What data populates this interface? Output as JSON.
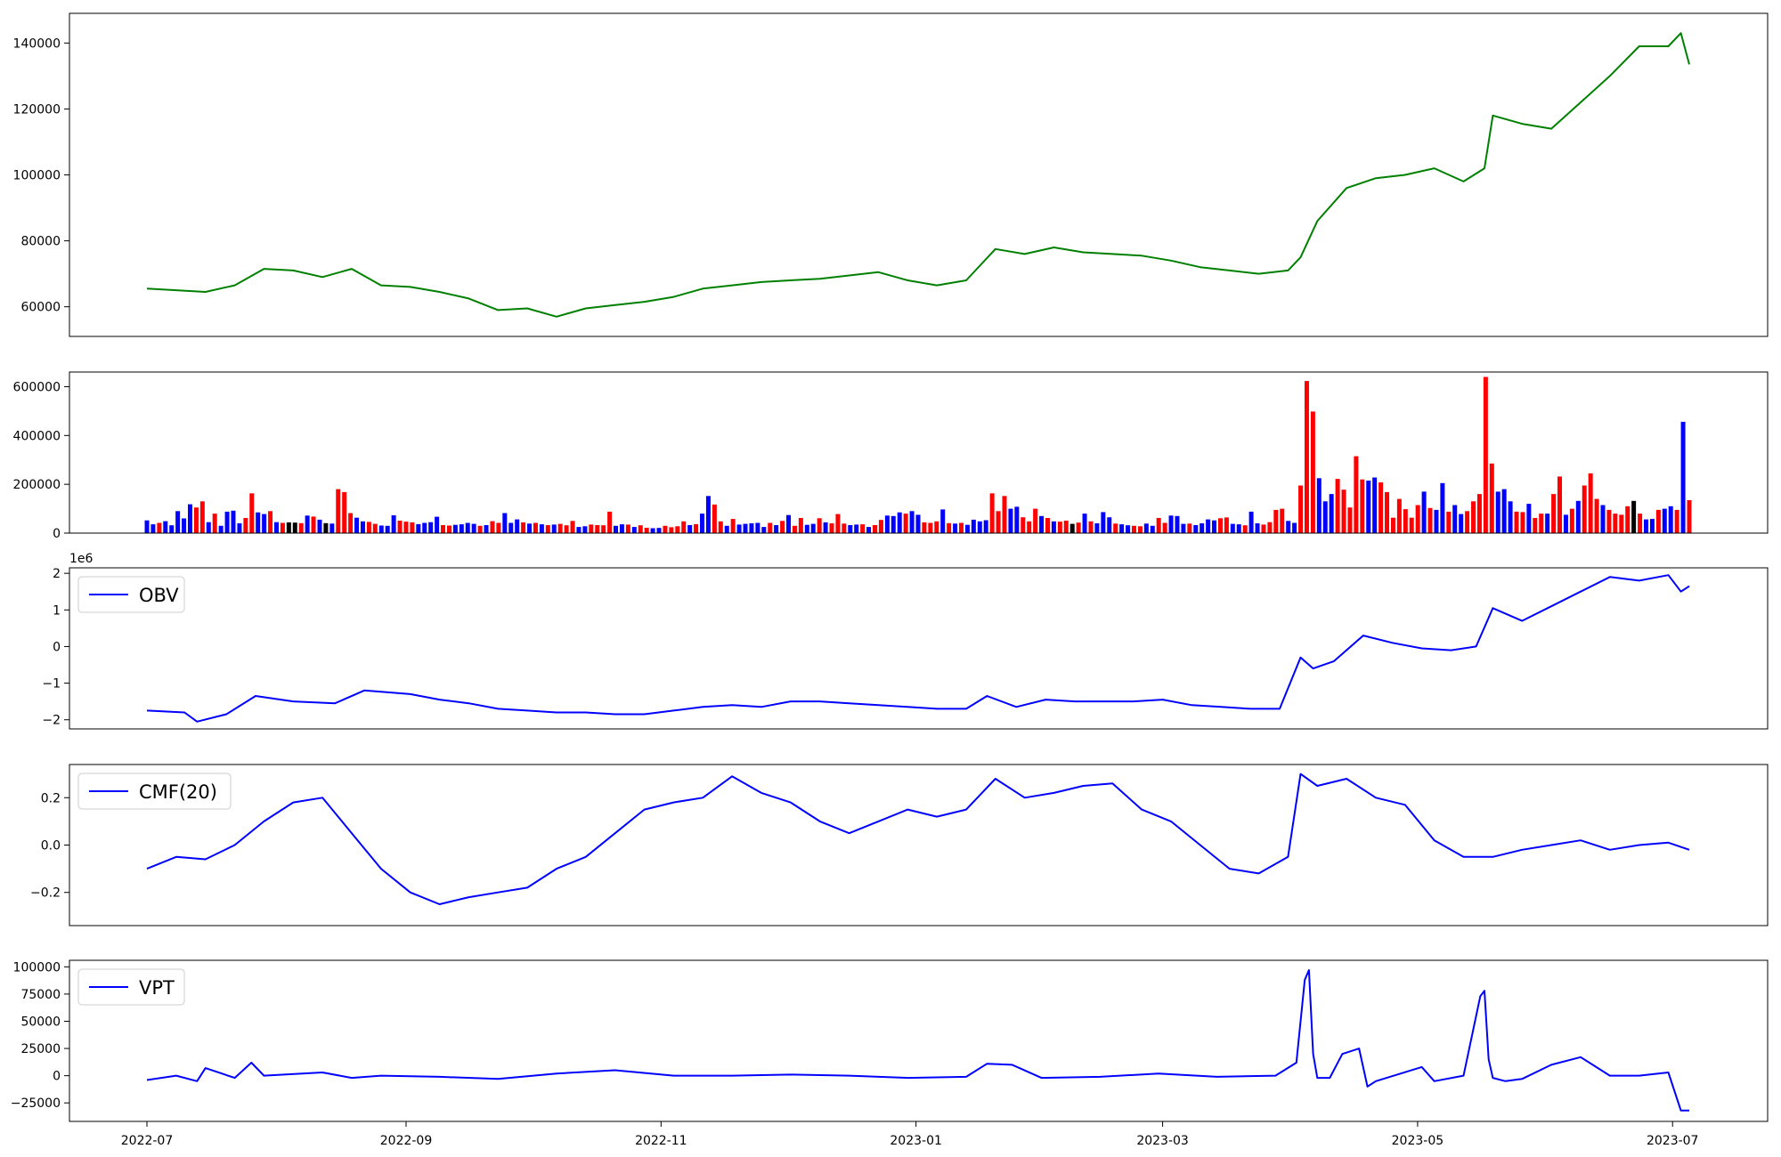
{
  "chart_data": [
    {
      "type": "line",
      "id": "price",
      "color": "#008000",
      "ylim": [
        51000,
        149000
      ],
      "yticks": [
        60000,
        80000,
        100000,
        120000,
        140000
      ],
      "series": [
        {
          "x": [
            "2022-07-01",
            "2022-07-08",
            "2022-07-15",
            "2022-07-22",
            "2022-07-29",
            "2022-08-05",
            "2022-08-12",
            "2022-08-19",
            "2022-08-26",
            "2022-09-02",
            "2022-09-09",
            "2022-09-16",
            "2022-09-23",
            "2022-09-30",
            "2022-10-07",
            "2022-10-14",
            "2022-10-21",
            "2022-10-28",
            "2022-11-04",
            "2022-11-11",
            "2022-11-18",
            "2022-11-25",
            "2022-12-02",
            "2022-12-09",
            "2022-12-16",
            "2022-12-23",
            "2022-12-30",
            "2023-01-06",
            "2023-01-13",
            "2023-01-20",
            "2023-01-27",
            "2023-02-03",
            "2023-02-10",
            "2023-02-17",
            "2023-02-24",
            "2023-03-03",
            "2023-03-10",
            "2023-03-17",
            "2023-03-24",
            "2023-03-31",
            "2023-04-03",
            "2023-04-07",
            "2023-04-14",
            "2023-04-21",
            "2023-04-28",
            "2023-05-05",
            "2023-05-12",
            "2023-05-17",
            "2023-05-19",
            "2023-05-26",
            "2023-06-02",
            "2023-06-09",
            "2023-06-16",
            "2023-06-23",
            "2023-06-30",
            "2023-07-03",
            "2023-07-05"
          ],
          "values": [
            65500,
            65000,
            64500,
            66500,
            71500,
            71000,
            69000,
            71500,
            66500,
            66000,
            64500,
            62500,
            59000,
            59500,
            57000,
            59500,
            60500,
            61500,
            63000,
            65500,
            66500,
            67500,
            68000,
            68500,
            69500,
            70500,
            68000,
            66500,
            68000,
            77500,
            76000,
            78000,
            76500,
            76000,
            75500,
            74000,
            72000,
            71000,
            70000,
            71000,
            75000,
            86000,
            96000,
            99000,
            100000,
            102000,
            98000,
            102000,
            118000,
            115500,
            114000,
            122000,
            130000,
            139000,
            139000,
            143000,
            133500
          ]
        }
      ]
    },
    {
      "type": "bar",
      "id": "volume",
      "ylim": [
        0,
        660000
      ],
      "yticks": [
        0,
        200000,
        400000,
        600000
      ],
      "colors": {
        "up": "#ff0000",
        "down": "#0000ff",
        "flat": "#000000"
      },
      "x_start": "2022-07-01",
      "x_end": "2023-07-05",
      "values": [
        52000,
        36000,
        42000,
        49000,
        32000,
        90000,
        60000,
        118000,
        105000,
        130000,
        45000,
        80000,
        30000,
        88000,
        92000,
        40000,
        62000,
        163000,
        85000,
        78000,
        90000,
        45000,
        42000,
        44000,
        43000,
        41000,
        72000,
        68000,
        55000,
        41000,
        39000,
        180000,
        168000,
        82000,
        63000,
        48000,
        46000,
        38000,
        31000,
        30000,
        73000,
        51000,
        47000,
        44000,
        37000,
        42000,
        45000,
        67000,
        33000,
        31000,
        34000,
        36000,
        42000,
        38000,
        30000,
        33000,
        49000,
        42000,
        82000,
        42000,
        56000,
        44000,
        39000,
        42000,
        36000,
        33000,
        35000,
        38000,
        32000,
        50000,
        25000,
        28000,
        35000,
        33000,
        32000,
        88000,
        30000,
        36000,
        35000,
        25000,
        32000,
        22000,
        20000,
        21000,
        30000,
        24000,
        28000,
        48000,
        33000,
        37000,
        80000,
        152000,
        117000,
        48000,
        30000,
        58000,
        35000,
        38000,
        40000,
        42000,
        25000,
        42000,
        33000,
        50000,
        74000,
        30000,
        62000,
        34000,
        38000,
        61000,
        44000,
        40000,
        78000,
        39000,
        33000,
        35000,
        36000,
        25000,
        33000,
        54000,
        72000,
        70000,
        85000,
        80000,
        90000,
        75000,
        44000,
        42000,
        48000,
        97000,
        41000,
        39000,
        42000,
        34000,
        55000,
        48000,
        53000,
        163000,
        90000,
        152000,
        100000,
        108000,
        65000,
        48000,
        100000,
        70000,
        62000,
        48000,
        47000,
        51000,
        38000,
        43000,
        80000,
        48000,
        40000,
        86000,
        65000,
        39000,
        36000,
        32000,
        30000,
        28000,
        39000,
        30000,
        62000,
        42000,
        72000,
        70000,
        38000,
        39000,
        33000,
        40000,
        56000,
        52000,
        61000,
        64000,
        38000,
        36000,
        32000,
        88000,
        40000,
        35000,
        45000,
        95000,
        100000,
        50000,
        42000,
        195000,
        623000,
        498000,
        225000,
        130000,
        160000,
        222000,
        178000,
        105000,
        315000,
        220000,
        215000,
        228000,
        208000,
        168000,
        63000,
        140000,
        98000,
        63000,
        115000,
        170000,
        103000,
        95000,
        205000,
        88000,
        115000,
        78000,
        90000,
        130000,
        160000,
        640000,
        285000,
        170000,
        180000,
        130000,
        88000,
        86000,
        120000,
        62000,
        80000,
        80000,
        160000,
        232000,
        75000,
        100000,
        132000,
        195000,
        245000,
        140000,
        115000,
        95000,
        80000,
        75000,
        110000,
        132000,
        80000,
        56000,
        58000,
        95000,
        100000,
        110000,
        95000,
        456000,
        135000
      ],
      "kinds": [
        "d",
        "d",
        "r",
        "d",
        "d",
        "d",
        "d",
        "d",
        "r",
        "r",
        "d",
        "r",
        "d",
        "d",
        "d",
        "d",
        "r",
        "r",
        "d",
        "d",
        "r",
        "d",
        "r",
        "k",
        "k",
        "r",
        "d",
        "r",
        "d",
        "k",
        "d",
        "r",
        "r",
        "r",
        "d",
        "d",
        "r",
        "r",
        "d",
        "d",
        "d",
        "r",
        "r",
        "r",
        "d",
        "d",
        "d",
        "d",
        "r",
        "r",
        "d",
        "d",
        "d",
        "d",
        "r",
        "d",
        "r",
        "r",
        "d",
        "d",
        "d",
        "r",
        "d",
        "r",
        "d",
        "r",
        "d",
        "r",
        "r",
        "r",
        "d",
        "d",
        "r",
        "r",
        "r",
        "r",
        "d",
        "d",
        "r",
        "d",
        "r",
        "r",
        "d",
        "d",
        "r",
        "r",
        "r",
        "r",
        "d",
        "r",
        "d",
        "d",
        "r",
        "r",
        "d",
        "r",
        "d",
        "d",
        "d",
        "d",
        "d",
        "r",
        "d",
        "r",
        "d",
        "r",
        "r",
        "d",
        "d",
        "r",
        "d",
        "r",
        "r",
        "r",
        "d",
        "d",
        "r",
        "d",
        "r",
        "r",
        "d",
        "d",
        "d",
        "r",
        "d",
        "d",
        "r",
        "r",
        "r",
        "d",
        "r",
        "d",
        "r",
        "d",
        "d",
        "d",
        "d",
        "r",
        "r",
        "r",
        "d",
        "d",
        "r",
        "r",
        "r",
        "d",
        "r",
        "d",
        "r",
        "r",
        "k",
        "r",
        "d",
        "r",
        "d",
        "d",
        "d",
        "r",
        "d",
        "d",
        "r",
        "r",
        "d",
        "d",
        "r",
        "r",
        "d",
        "d",
        "d",
        "r",
        "d",
        "d",
        "d",
        "d",
        "r",
        "r",
        "d",
        "d",
        "r",
        "d",
        "d",
        "r",
        "r",
        "r",
        "r",
        "d",
        "d",
        "r",
        "r",
        "r",
        "d",
        "d",
        "d",
        "r",
        "r",
        "r",
        "r",
        "r",
        "d",
        "d",
        "r",
        "r",
        "r",
        "r",
        "r",
        "r",
        "r",
        "d",
        "r",
        "d",
        "d",
        "r",
        "d",
        "d",
        "r",
        "r",
        "r",
        "r",
        "r",
        "d",
        "d",
        "d",
        "r",
        "r",
        "d",
        "r",
        "r",
        "d",
        "r",
        "r",
        "d",
        "r",
        "d",
        "r",
        "r",
        "r",
        "d",
        "r",
        "r",
        "r",
        "r",
        "k",
        "r",
        "d",
        "d",
        "r",
        "d",
        "d",
        "r",
        "d",
        "r"
      ]
    },
    {
      "type": "line",
      "id": "obv",
      "color": "#0000ff",
      "legend": "OBV",
      "offset_label": "1e6",
      "ylim": [
        -2.25,
        2.15
      ],
      "yticks": [
        -2,
        -1,
        0,
        1,
        2
      ],
      "ytick_labels": [
        "−2",
        "−1",
        "0",
        "1",
        "2"
      ],
      "series": [
        {
          "name": "OBV",
          "x": [
            "2022-07-01",
            "2022-07-10",
            "2022-07-13",
            "2022-07-20",
            "2022-07-27",
            "2022-08-05",
            "2022-08-15",
            "2022-08-22",
            "2022-09-02",
            "2022-09-09",
            "2022-09-16",
            "2022-09-23",
            "2022-09-30",
            "2022-10-07",
            "2022-10-14",
            "2022-10-21",
            "2022-10-28",
            "2022-11-04",
            "2022-11-11",
            "2022-11-18",
            "2022-11-25",
            "2022-12-02",
            "2022-12-09",
            "2022-12-16",
            "2022-12-23",
            "2022-12-30",
            "2023-01-06",
            "2023-01-13",
            "2023-01-18",
            "2023-01-25",
            "2023-02-01",
            "2023-02-08",
            "2023-02-15",
            "2023-02-22",
            "2023-03-01",
            "2023-03-08",
            "2023-03-15",
            "2023-03-22",
            "2023-03-29",
            "2023-04-03",
            "2023-04-06",
            "2023-04-11",
            "2023-04-18",
            "2023-04-25",
            "2023-05-02",
            "2023-05-09",
            "2023-05-15",
            "2023-05-19",
            "2023-05-26",
            "2023-06-02",
            "2023-06-09",
            "2023-06-16",
            "2023-06-23",
            "2023-06-30",
            "2023-07-03",
            "2023-07-05"
          ],
          "values": [
            -1.75,
            -1.8,
            -2.05,
            -1.85,
            -1.35,
            -1.5,
            -1.55,
            -1.2,
            -1.3,
            -1.45,
            -1.55,
            -1.7,
            -1.75,
            -1.8,
            -1.8,
            -1.85,
            -1.85,
            -1.75,
            -1.65,
            -1.6,
            -1.65,
            -1.5,
            -1.5,
            -1.55,
            -1.6,
            -1.65,
            -1.7,
            -1.7,
            -1.35,
            -1.65,
            -1.45,
            -1.5,
            -1.5,
            -1.5,
            -1.45,
            -1.6,
            -1.65,
            -1.7,
            -1.7,
            -0.3,
            -0.6,
            -0.4,
            0.3,
            0.1,
            -0.05,
            -0.1,
            0.0,
            1.05,
            0.7,
            1.1,
            1.5,
            1.9,
            1.8,
            1.95,
            1.5,
            1.65
          ]
        }
      ]
    },
    {
      "type": "line",
      "id": "cmf",
      "color": "#0000ff",
      "legend": "CMF(20)",
      "ylim": [
        -0.34,
        0.34
      ],
      "yticks": [
        -0.2,
        0.0,
        0.2
      ],
      "ytick_labels": [
        "−0.2",
        "0.0",
        "0.2"
      ],
      "series": [
        {
          "name": "CMF(20)",
          "x": [
            "2022-07-01",
            "2022-07-08",
            "2022-07-15",
            "2022-07-22",
            "2022-07-29",
            "2022-08-05",
            "2022-08-12",
            "2022-08-19",
            "2022-08-26",
            "2022-09-02",
            "2022-09-09",
            "2022-09-16",
            "2022-09-23",
            "2022-09-30",
            "2022-10-07",
            "2022-10-14",
            "2022-10-21",
            "2022-10-28",
            "2022-11-04",
            "2022-11-11",
            "2022-11-18",
            "2022-11-25",
            "2022-12-02",
            "2022-12-09",
            "2022-12-16",
            "2022-12-23",
            "2022-12-30",
            "2023-01-06",
            "2023-01-13",
            "2023-01-20",
            "2023-01-27",
            "2023-02-03",
            "2023-02-10",
            "2023-02-17",
            "2023-02-24",
            "2023-03-03",
            "2023-03-10",
            "2023-03-17",
            "2023-03-24",
            "2023-03-31",
            "2023-04-03",
            "2023-04-07",
            "2023-04-14",
            "2023-04-21",
            "2023-04-28",
            "2023-05-05",
            "2023-05-12",
            "2023-05-19",
            "2023-05-26",
            "2023-06-02",
            "2023-06-09",
            "2023-06-16",
            "2023-06-23",
            "2023-06-30",
            "2023-07-05"
          ],
          "values": [
            -0.1,
            -0.05,
            -0.06,
            0.0,
            0.1,
            0.18,
            0.2,
            0.05,
            -0.1,
            -0.2,
            -0.25,
            -0.22,
            -0.2,
            -0.18,
            -0.1,
            -0.05,
            0.05,
            0.15,
            0.18,
            0.2,
            0.29,
            0.22,
            0.18,
            0.1,
            0.05,
            0.1,
            0.15,
            0.12,
            0.15,
            0.28,
            0.2,
            0.22,
            0.25,
            0.26,
            0.15,
            0.1,
            0.0,
            -0.1,
            -0.12,
            -0.05,
            0.3,
            0.25,
            0.28,
            0.2,
            0.17,
            0.02,
            -0.05,
            -0.05,
            -0.02,
            0.0,
            0.02,
            -0.02,
            0.0,
            0.01,
            -0.02
          ]
        }
      ]
    },
    {
      "type": "line",
      "id": "vpt",
      "color": "#0000ff",
      "legend": "VPT",
      "ylim": [
        -42000,
        106000
      ],
      "yticks": [
        -25000,
        0,
        25000,
        50000,
        75000,
        100000
      ],
      "ytick_labels": [
        "−25000",
        "0",
        "25000",
        "50000",
        "75000",
        "100000"
      ],
      "series": [
        {
          "name": "VPT",
          "x": [
            "2022-07-01",
            "2022-07-08",
            "2022-07-13",
            "2022-07-15",
            "2022-07-22",
            "2022-07-26",
            "2022-07-29",
            "2022-08-12",
            "2022-08-19",
            "2022-08-26",
            "2022-09-09",
            "2022-09-23",
            "2022-10-07",
            "2022-10-21",
            "2022-11-04",
            "2022-11-18",
            "2022-12-02",
            "2022-12-16",
            "2022-12-30",
            "2023-01-13",
            "2023-01-18",
            "2023-01-24",
            "2023-01-31",
            "2023-02-14",
            "2023-02-28",
            "2023-03-14",
            "2023-03-28",
            "2023-04-02",
            "2023-04-04",
            "2023-04-05",
            "2023-04-06",
            "2023-04-07",
            "2023-04-10",
            "2023-04-13",
            "2023-04-17",
            "2023-04-19",
            "2023-04-21",
            "2023-05-02",
            "2023-05-05",
            "2023-05-12",
            "2023-05-16",
            "2023-05-17",
            "2023-05-18",
            "2023-05-19",
            "2023-05-22",
            "2023-05-26",
            "2023-06-02",
            "2023-06-09",
            "2023-06-16",
            "2023-06-23",
            "2023-06-30",
            "2023-07-03",
            "2023-07-05"
          ],
          "values": [
            -4000,
            0,
            -5000,
            7000,
            -2000,
            12000,
            0,
            3000,
            -2000,
            0,
            -1000,
            -3000,
            2000,
            5000,
            0,
            0,
            1000,
            0,
            -2000,
            -1000,
            11000,
            10000,
            -2000,
            -1000,
            2000,
            -1000,
            0,
            12000,
            88000,
            97000,
            20000,
            -2000,
            -2000,
            20000,
            25000,
            -10000,
            -5000,
            8000,
            -5000,
            0,
            73000,
            78000,
            15000,
            -2000,
            -5000,
            -3000,
            10000,
            17000,
            0,
            0,
            3000,
            -32000,
            -32000
          ]
        }
      ]
    }
  ],
  "x_axis": {
    "tick_dates": [
      "2022-07-01",
      "2022-09-01",
      "2022-11-01",
      "2023-01-01",
      "2023-03-01",
      "2023-05-01",
      "2023-07-01"
    ],
    "tick_labels": [
      "2022-07",
      "2022-09",
      "2022-11",
      "2023-01",
      "2023-03",
      "2023-05",
      "2023-07"
    ]
  }
}
